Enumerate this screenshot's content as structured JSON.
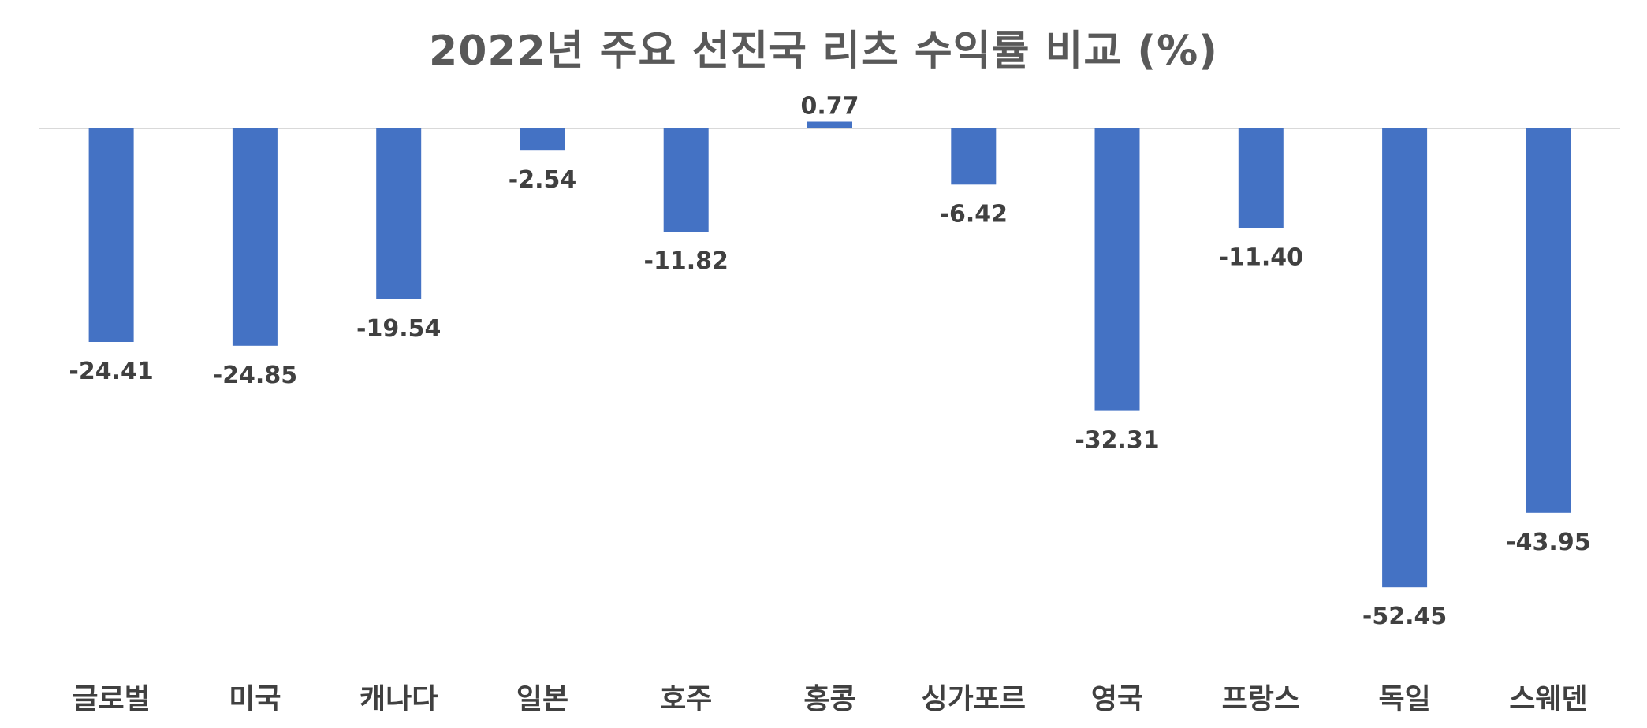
{
  "chart_data": {
    "type": "bar",
    "title": "2022년 주요 선진국 리츠 수익률 비교 (%)",
    "categories": [
      "글로벌",
      "미국",
      "캐나다",
      "일본",
      "호주",
      "홍콩",
      "싱가포르",
      "영국",
      "프랑스",
      "독일",
      "스웨덴"
    ],
    "values": [
      -24.41,
      -24.85,
      -19.54,
      -2.54,
      -11.82,
      0.77,
      -6.42,
      -32.31,
      -11.4,
      -52.45,
      -43.95
    ],
    "value_labels": [
      "-24.41",
      "-24.85",
      "-19.54",
      "-2.54",
      "-11.82",
      "0.77",
      "-6.42",
      "-32.31",
      "-11.40",
      "-52.45",
      "-43.95"
    ],
    "xlabel": "",
    "ylabel": "",
    "ylim": [
      -52.45,
      0.77
    ],
    "grid": false,
    "legend": "none",
    "colors": {
      "bar": "#4472C4",
      "axis": "#D9D9D9",
      "title": "#595959",
      "labels": "#404040"
    }
  }
}
